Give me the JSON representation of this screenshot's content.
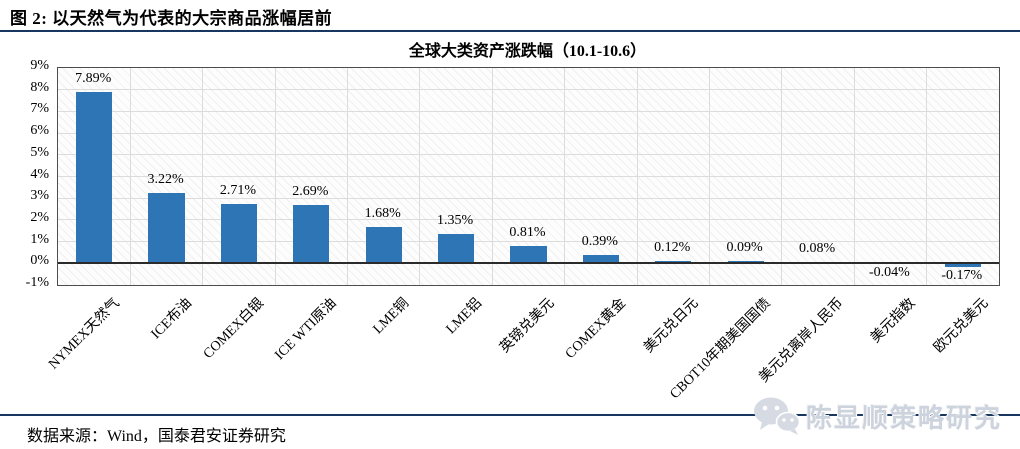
{
  "page": {
    "figure_caption": "图 2: 以天然气为代表的大宗商品涨幅居前",
    "source_note": "数据来源：Wind，国泰君安证券研究",
    "watermark_text": "陈显顺策略研究"
  },
  "colors": {
    "bar": "#2E75B6",
    "rule_line": "#17375E",
    "gridline": "#DCDCDC",
    "plot_border": "#4D4D4D",
    "zero_line": "#2B2B2B",
    "watermark_gray": "#CDD3DC"
  },
  "chart_data": {
    "type": "bar",
    "title": "全球大类资产涨跌幅（10.1-10.6）",
    "categories": [
      "NYMEX天然气",
      "ICE布油",
      "COMEX白银",
      "ICE WTI原油",
      "LME铜",
      "LME铝",
      "英镑兑美元",
      "COMEX黄金",
      "美元兑日元",
      "CBOT10年期美国国债",
      "美元兑离岸人民币",
      "美元指数",
      "欧元兑美元"
    ],
    "values": [
      7.89,
      3.22,
      2.71,
      2.69,
      1.68,
      1.35,
      0.81,
      0.39,
      0.12,
      0.09,
      0.08,
      -0.04,
      -0.17
    ],
    "value_labels": [
      "7.89%",
      "3.22%",
      "2.71%",
      "2.69%",
      "1.68%",
      "1.35%",
      "0.81%",
      "0.39%",
      "0.12%",
      "0.09%",
      "0.08%",
      "-0.04%",
      "-0.17%"
    ],
    "y_ticks": [
      "9%",
      "8%",
      "7%",
      "6%",
      "5%",
      "4%",
      "3%",
      "2%",
      "1%",
      "0%",
      "-1%"
    ],
    "ylim": [
      -1,
      9
    ],
    "xlabel": "",
    "ylabel": "",
    "grid": true,
    "legend": "none",
    "x_label_rotation_deg": -45
  }
}
